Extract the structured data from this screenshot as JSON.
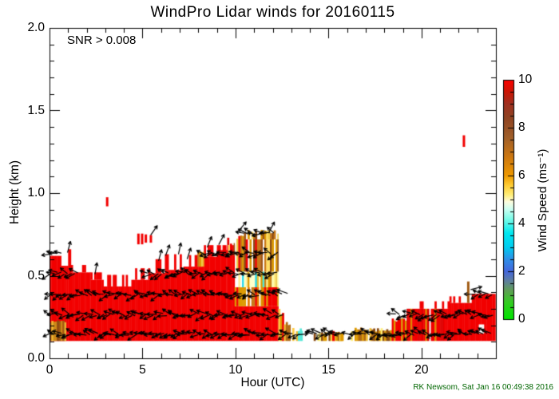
{
  "figure": {
    "title": "WindPro Lidar winds for 20160115",
    "annotation": "SNR > 0.008",
    "credit": "RK Newsom, Sat Jan 16 00:49:38 2016"
  },
  "colors": {
    "credit": "#006600",
    "axis": "#000000",
    "background": "#ffffff",
    "barb": "#000000",
    "dash": "#f20000"
  },
  "chart_data": {
    "type": "heatmap",
    "title": "WindPro Lidar winds for 20160115",
    "annotation": "SNR > 0.008",
    "xlabel": "Hour (UTC)",
    "ylabel": "Height (km)",
    "x_range": [
      0,
      24
    ],
    "y_range": [
      0,
      2.0
    ],
    "x_major_ticks": [
      0,
      5,
      10,
      15,
      20
    ],
    "x_tick_labels": [
      "0",
      "5",
      "10",
      "15",
      "20"
    ],
    "x_minor_step": 1,
    "y_major_ticks": [
      0.0,
      0.5,
      1.0,
      1.5,
      2.0
    ],
    "y_tick_labels": [
      "0.0",
      "0.5",
      "1.0",
      "1.5",
      "2.0"
    ],
    "y_minor_step": 0.1,
    "grid": false,
    "colorbar": {
      "label": "Wind Speed (ms⁻¹)",
      "range": [
        0,
        10
      ],
      "major_ticks": [
        0,
        2,
        4,
        6,
        8,
        10
      ],
      "tick_labels": [
        "0",
        "2",
        "4",
        "6",
        "8",
        "10"
      ],
      "minor_step": 0.5,
      "gradient_stops": [
        [
          0.0,
          "#00e400"
        ],
        [
          0.07,
          "#33cc22"
        ],
        [
          0.12,
          "#5f9f55"
        ],
        [
          0.16,
          "#5f7f9f"
        ],
        [
          0.2,
          "#4466dd"
        ],
        [
          0.25,
          "#2f8fe8"
        ],
        [
          0.3,
          "#00ccf0"
        ],
        [
          0.36,
          "#00e8f0"
        ],
        [
          0.42,
          "#7dfce8"
        ],
        [
          0.46,
          "#ccfff2"
        ],
        [
          0.49,
          "#fdfde0"
        ],
        [
          0.52,
          "#ffee77"
        ],
        [
          0.56,
          "#ffcc33"
        ],
        [
          0.6,
          "#ee9900"
        ],
        [
          0.68,
          "#cc7711"
        ],
        [
          0.76,
          "#a05f2a"
        ],
        [
          0.84,
          "#8f4422"
        ],
        [
          0.9,
          "#a03020"
        ],
        [
          0.95,
          "#cc1505"
        ],
        [
          1.0,
          "#ff0000"
        ]
      ]
    },
    "palettes": {
      "red": [
        "#f20000"
      ],
      "redMix": [
        "#f20000",
        "#e00000",
        "#c81800"
      ],
      "goldBrown": [
        "#cc8818",
        "#a05a12",
        "#dd9900",
        "#8a4a10",
        "#eebb33"
      ],
      "goldMix": [
        "#dd9900",
        "#eecc44",
        "#c87818",
        "#eeb020"
      ],
      "midMix": [
        "#f20000",
        "#dd9900",
        "#e87800",
        "#f20000",
        "#c87818"
      ],
      "cyanBand": [
        "#55e8d8",
        "#a8ffe8",
        "#ffee99",
        "#dd9900",
        "#22d8ee",
        "#ffffcc",
        "#eebb33"
      ],
      "paleBand": [
        "#ffee88",
        "#dd9900",
        "#ffffbb",
        "#eecc55",
        "#c88018"
      ],
      "upperGold": [
        "#dd9900",
        "#c87818",
        "#eecc44",
        "#a0581a",
        "#f20000",
        "#8a4a14",
        "#ffdd66",
        "#dd9900"
      ],
      "lowGoldCyan": [
        "#dd9900",
        "#eebb33",
        "#55e8d8",
        "#f20000",
        "#ffcc44",
        "#b06a14"
      ],
      "lowGold": [
        "#dd9900",
        "#eebb33",
        "#b06a14",
        "#ffcc44",
        "#8a4a10",
        "#ffee77"
      ],
      "redGold": [
        "#f20000",
        "#dd9900",
        "#e87800",
        "#f20000"
      ],
      "rightRed": [
        "#f20000",
        "#f20000",
        "#f20000",
        "#f20000",
        "#dd8800",
        "#e00000"
      ],
      "brown": [
        "#a05a12"
      ],
      "white": [
        "#ffffff"
      ]
    },
    "regions": [
      [
        0,
        0.62,
        0.105,
        0.62,
        "red",
        0,
        0
      ],
      [
        0.62,
        1.0,
        0.105,
        0.56,
        "red",
        0,
        0
      ],
      [
        1.0,
        1.15,
        0.105,
        0.66,
        "red",
        0,
        0
      ],
      [
        1.15,
        2.2,
        0.105,
        0.52,
        "red",
        0,
        0
      ],
      [
        2.2,
        2.9,
        0.105,
        0.475,
        "red",
        0,
        0
      ],
      [
        2.9,
        4.4,
        0.105,
        0.435,
        "red",
        0,
        0
      ],
      [
        4.4,
        5.4,
        0.105,
        0.475,
        "red",
        0,
        0
      ],
      [
        5.4,
        6.2,
        0.105,
        0.515,
        "red",
        0,
        0
      ],
      [
        6.2,
        7.2,
        0.105,
        0.535,
        "red",
        0,
        0
      ],
      [
        7.2,
        8.2,
        0.105,
        0.555,
        "red",
        0,
        0
      ],
      [
        8.2,
        9.0,
        0.105,
        0.615,
        "red",
        0,
        0
      ],
      [
        9.0,
        9.55,
        0.105,
        0.655,
        "red",
        0,
        0
      ],
      [
        9.55,
        9.95,
        0.105,
        0.685,
        "red",
        0,
        0
      ],
      [
        9.95,
        12.3,
        0.105,
        0.315,
        "red",
        0,
        0
      ],
      [
        1.15,
        2.2,
        0.52,
        0.565,
        "red",
        0.72,
        0
      ],
      [
        2.2,
        2.9,
        0.475,
        0.52,
        "red",
        0.65,
        0
      ],
      [
        2.9,
        4.4,
        0.435,
        0.505,
        "red",
        0.55,
        0
      ],
      [
        4.4,
        5.4,
        0.475,
        0.545,
        "red",
        0.6,
        0
      ],
      [
        5.4,
        6.2,
        0.515,
        0.6,
        "red",
        0.65,
        0
      ],
      [
        6.2,
        7.2,
        0.535,
        0.63,
        "red",
        0.68,
        0
      ],
      [
        7.2,
        8.2,
        0.555,
        0.625,
        "red",
        0.7,
        0
      ],
      [
        8.2,
        9.55,
        0.615,
        0.685,
        "red",
        0.6,
        0
      ],
      [
        9.55,
        9.95,
        0.685,
        0.73,
        "redMix",
        0.5,
        0
      ],
      [
        0,
        0.88,
        0.105,
        0.235,
        "goldBrown",
        0.08,
        0.15
      ],
      [
        7.95,
        8.3,
        0.555,
        0.65,
        "goldMix",
        0.15,
        0.1
      ],
      [
        9.95,
        12.3,
        0.315,
        0.43,
        "midMix",
        0.06,
        0
      ],
      [
        10.15,
        11.55,
        0.43,
        0.525,
        "cyanBand",
        0.05,
        0
      ],
      [
        11.55,
        12.3,
        0.43,
        0.525,
        "paleBand",
        0.05,
        0
      ],
      [
        9.6,
        9.95,
        0.62,
        0.7,
        "upperGold",
        0.3,
        0.2
      ],
      [
        9.95,
        10.45,
        0.525,
        0.755,
        "upperGold",
        0.12,
        0.15
      ],
      [
        10.45,
        12.3,
        0.525,
        0.72,
        "upperGold",
        0.1,
        0
      ],
      [
        10.45,
        12.3,
        0.72,
        0.778,
        "upperGold",
        0.45,
        0.5
      ],
      [
        12.3,
        12.6,
        0.105,
        0.3,
        "lowGoldCyan",
        0.2,
        0.25
      ],
      [
        12.6,
        12.95,
        0.105,
        0.22,
        "lowGoldCyan",
        0.3,
        0.25
      ],
      [
        12.95,
        13.6,
        0.105,
        0.185,
        "lowGoldCyan",
        0.35,
        0.3
      ],
      [
        14.1,
        15.9,
        0.105,
        0.165,
        "lowGold",
        0.25,
        0.3
      ],
      [
        15.45,
        15.8,
        0.105,
        0.155,
        "cyanBand",
        0.3,
        0.2
      ],
      [
        15.2,
        15.32,
        0.105,
        0.165,
        "red",
        0,
        0
      ],
      [
        16.2,
        18.4,
        0.105,
        0.19,
        "lowGold",
        0.12,
        0.35
      ],
      [
        18.4,
        19.2,
        0.105,
        0.25,
        "redGold",
        0.08,
        0.2
      ],
      [
        19.2,
        21.5,
        0.105,
        0.3,
        "rightRed",
        0.04,
        0
      ],
      [
        19.2,
        21.5,
        0.3,
        0.345,
        "red",
        0.8,
        0
      ],
      [
        21.5,
        22.7,
        0.105,
        0.335,
        "red",
        0,
        0
      ],
      [
        21.5,
        22.7,
        0.335,
        0.375,
        "red",
        0.75,
        0
      ],
      [
        22.7,
        23.97,
        0.105,
        0.39,
        "red",
        0,
        0
      ],
      [
        22.45,
        22.56,
        0.335,
        0.465,
        "brown",
        0,
        0
      ],
      [
        23.08,
        23.35,
        0.15,
        0.205,
        "white",
        0,
        0
      ]
    ],
    "red_dashes": [
      [
        3.1,
        0.92,
        0.975
      ],
      [
        4.78,
        0.69,
        0.755
      ],
      [
        4.98,
        0.69,
        0.755
      ],
      [
        5.18,
        0.7,
        0.75
      ],
      [
        5.45,
        0.7,
        0.745
      ],
      [
        22.28,
        1.28,
        1.35
      ]
    ],
    "barb_rows": [
      {
        "km": 0.147,
        "spans": [
          [
            0.05,
            13.55
          ],
          [
            14.15,
            15.85
          ],
          [
            16.25,
            23.9
          ]
        ]
      },
      {
        "km": 0.265,
        "spans": [
          [
            0.05,
            12.65
          ],
          [
            18.6,
            23.9
          ]
        ]
      },
      {
        "km": 0.385,
        "spans": [
          [
            0.05,
            12.6
          ],
          [
            22.85,
            23.9
          ]
        ]
      },
      {
        "km": 0.515,
        "spans": [
          [
            0.05,
            1.55
          ],
          [
            5.25,
            12.4
          ]
        ]
      },
      {
        "km": 0.635,
        "spans": [
          [
            0.05,
            0.65
          ],
          [
            8.35,
            12.3
          ]
        ]
      },
      {
        "km": 0.755,
        "spans": [
          [
            10.45,
            12.2
          ]
        ]
      }
    ],
    "arrows": [
      [
        1.05,
        0.675,
        -75
      ],
      [
        2.5,
        0.545,
        -80
      ],
      [
        5.62,
        0.775,
        -55
      ],
      [
        5.95,
        0.625,
        -75
      ],
      [
        6.35,
        0.655,
        -70
      ],
      [
        7.0,
        0.665,
        -78
      ],
      [
        7.5,
        0.635,
        -72
      ],
      [
        8.6,
        0.705,
        -68
      ],
      [
        9.25,
        0.72,
        -62
      ],
      [
        10.38,
        0.8,
        -50
      ],
      [
        11.95,
        0.795,
        -62
      ],
      [
        12.5,
        0.405,
        200
      ],
      [
        13.6,
        0.145,
        -5
      ],
      [
        14.65,
        0.14,
        0
      ],
      [
        22.95,
        0.425,
        -15
      ]
    ]
  }
}
